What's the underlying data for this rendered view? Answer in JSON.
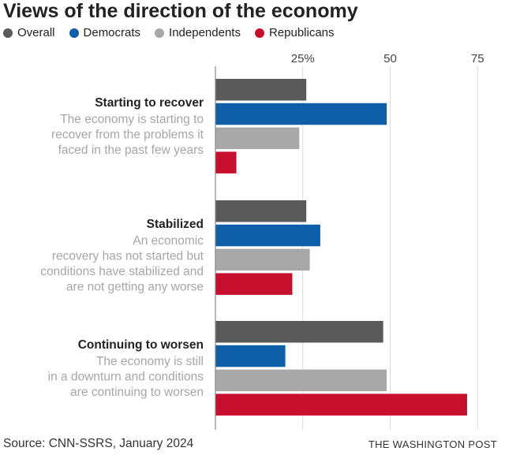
{
  "title": "Views of the direction of the economy",
  "legend": [
    {
      "label": "Overall",
      "color": "#5a5a5a"
    },
    {
      "label": "Democrats",
      "color": "#0f5ea8"
    },
    {
      "label": "Independents",
      "color": "#a8a8a8"
    },
    {
      "label": "Republicans",
      "color": "#c8102e"
    }
  ],
  "source": "Source: CNN-SSRS, January 2024",
  "credit": "THE WASHINGTON POST",
  "chart_data": {
    "type": "bar",
    "orientation": "horizontal",
    "xlim": [
      0,
      75
    ],
    "ticks": [
      {
        "value": 25,
        "label": "25%"
      },
      {
        "value": 50,
        "label": "50"
      },
      {
        "value": 75,
        "label": "75"
      }
    ],
    "grid": true,
    "legend_position": "top-left",
    "categories": [
      {
        "name": "Starting to recover",
        "description": [
          "The economy is starting to",
          "recover from the problems it",
          "faced in the past few years"
        ]
      },
      {
        "name": "Stabilized",
        "description": [
          "An economic",
          "recovery has not started but",
          "conditions have stabilized and",
          "are not getting any worse"
        ]
      },
      {
        "name": "Continuing to worsen",
        "description": [
          "The economy is still",
          "in a downturn and conditions",
          "are continuing to worsen"
        ]
      }
    ],
    "series": [
      {
        "name": "Overall",
        "color": "#5a5a5a",
        "values": [
          26,
          26,
          48
        ]
      },
      {
        "name": "Democrats",
        "color": "#0f5ea8",
        "values": [
          49,
          30,
          20
        ]
      },
      {
        "name": "Independents",
        "color": "#a8a8a8",
        "values": [
          24,
          27,
          49
        ]
      },
      {
        "name": "Republicans",
        "color": "#c8102e",
        "values": [
          6,
          22,
          72
        ]
      }
    ]
  }
}
